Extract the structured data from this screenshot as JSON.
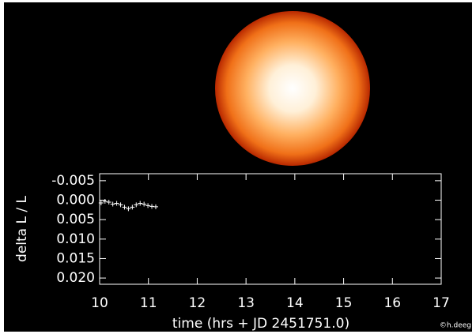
{
  "chart_data": {
    "type": "scatter",
    "marker": "plus",
    "color": "#ffffff",
    "x_label": "time (hrs + JD 2451751.0)",
    "y_label": "delta L / L",
    "x": [
      10.03,
      10.11,
      10.19,
      10.27,
      10.35,
      10.43,
      10.51,
      10.59,
      10.67,
      10.75,
      10.83,
      10.91,
      10.99,
      11.07,
      11.15
    ],
    "values": [
      0.0007,
      0.0003,
      0.0005,
      0.001,
      0.0008,
      0.0012,
      0.0018,
      0.0022,
      0.0018,
      0.0012,
      0.0008,
      0.001,
      0.0014,
      0.0016,
      0.0017
    ],
    "xlim": [
      10,
      17
    ],
    "xticks": [
      10,
      11,
      12,
      13,
      14,
      15,
      16,
      17
    ],
    "ylim": [
      0.0216,
      -0.0068
    ],
    "yticks": [
      {
        "value": -0.005,
        "label": "-0.005"
      },
      {
        "value": 0,
        "label": "0.000"
      },
      {
        "value": 0.005,
        "label": "0.005"
      },
      {
        "value": 0.01,
        "label": "0.010"
      },
      {
        "value": 0.015,
        "label": "0.015"
      },
      {
        "value": 0.02,
        "label": "0.020"
      }
    ],
    "credit": "©h.deeg"
  }
}
